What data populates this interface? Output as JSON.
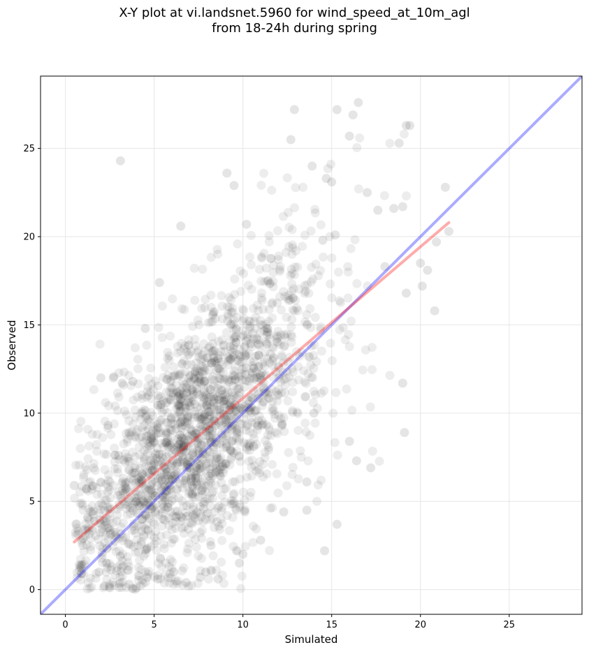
{
  "chart_data": {
    "type": "scatter",
    "title_line1": "X-Y plot at vi.landsnet.5960 for wind_speed_at_10m_agl",
    "title_line2": "from 18-24h during spring",
    "xlabel": "Simulated",
    "ylabel": "Observed",
    "xlim": [
      -1.4,
      29.1
    ],
    "ylim": [
      -1.4,
      29.1
    ],
    "xticks": [
      0,
      5,
      10,
      15,
      20,
      25
    ],
    "yticks": [
      0,
      5,
      10,
      15,
      20,
      25
    ],
    "grid": true,
    "colors": {
      "points": "#000000",
      "fit_line": "#ff0000",
      "identity_line": "#0000ff",
      "grid": "#e6e6e6"
    },
    "fit_line": {
      "x": [
        0.5,
        21.6
      ],
      "y": [
        2.7,
        20.8
      ]
    },
    "identity_line": {
      "x": [
        -1.4,
        29.1
      ],
      "y": [
        -1.4,
        29.1
      ]
    },
    "points": {
      "x": [
        3.1,
        12.9,
        15.3,
        16.5,
        16.2,
        12.7,
        19.2,
        19.4,
        18.8,
        16.0,
        14.7,
        15.0,
        9.1,
        9.5,
        6.5,
        5.3,
        13.9,
        17.0,
        18.5,
        19.0,
        20.9,
        21.6,
        15.2,
        17.6,
        14.5,
        10.2,
        18.0,
        19.2,
        20.1,
        20.4,
        20.8,
        20.0,
        19.1,
        21.4,
        4.5,
        2.7,
        2.0,
        3.8,
        3.2,
        1.2,
        0.5,
        1.0,
        0.9,
        2.5,
        2.2,
        3.6,
        4.0,
        1.9,
        3.1,
        14.6,
        15.3,
        13.6,
        12.3,
        11.0,
        17.2,
        19.0,
        16.4,
        16.0,
        9.8,
        10.0,
        8.6,
        7.6,
        7.9,
        6.8,
        8.2,
        0.9,
        5.2,
        4.6,
        6.1,
        14.0,
        12.2,
        5.9,
        3.0,
        2.4,
        6.3,
        13.6
      ],
      "y": [
        24.3,
        27.2,
        27.2,
        27.6,
        26.9,
        25.5,
        26.3,
        26.3,
        25.3,
        25.7,
        23.3,
        23.1,
        23.6,
        22.9,
        20.6,
        17.4,
        24.0,
        22.5,
        21.6,
        21.7,
        19.7,
        20.3,
        20.1,
        21.5,
        19.8,
        20.7,
        18.3,
        16.8,
        17.2,
        18.1,
        15.8,
        18.5,
        8.9,
        22.8,
        14.8,
        12.0,
        12.0,
        11.8,
        11.7,
        5.7,
        5.9,
        2.9,
        0.9,
        0.1,
        0.2,
        0.3,
        0.1,
        1.0,
        1.9,
        2.2,
        3.7,
        4.5,
        4.4,
        2.8,
        6.9,
        11.7,
        7.3,
        8.4,
        1.5,
        2.0,
        0.6,
        0.7,
        1.0,
        0.4,
        2.5,
        1.4,
        0.6,
        0.7,
        1.0,
        10.0,
        9.4,
        8.2,
        7.6,
        9.3,
        11.2,
        6.1
      ]
    }
  }
}
